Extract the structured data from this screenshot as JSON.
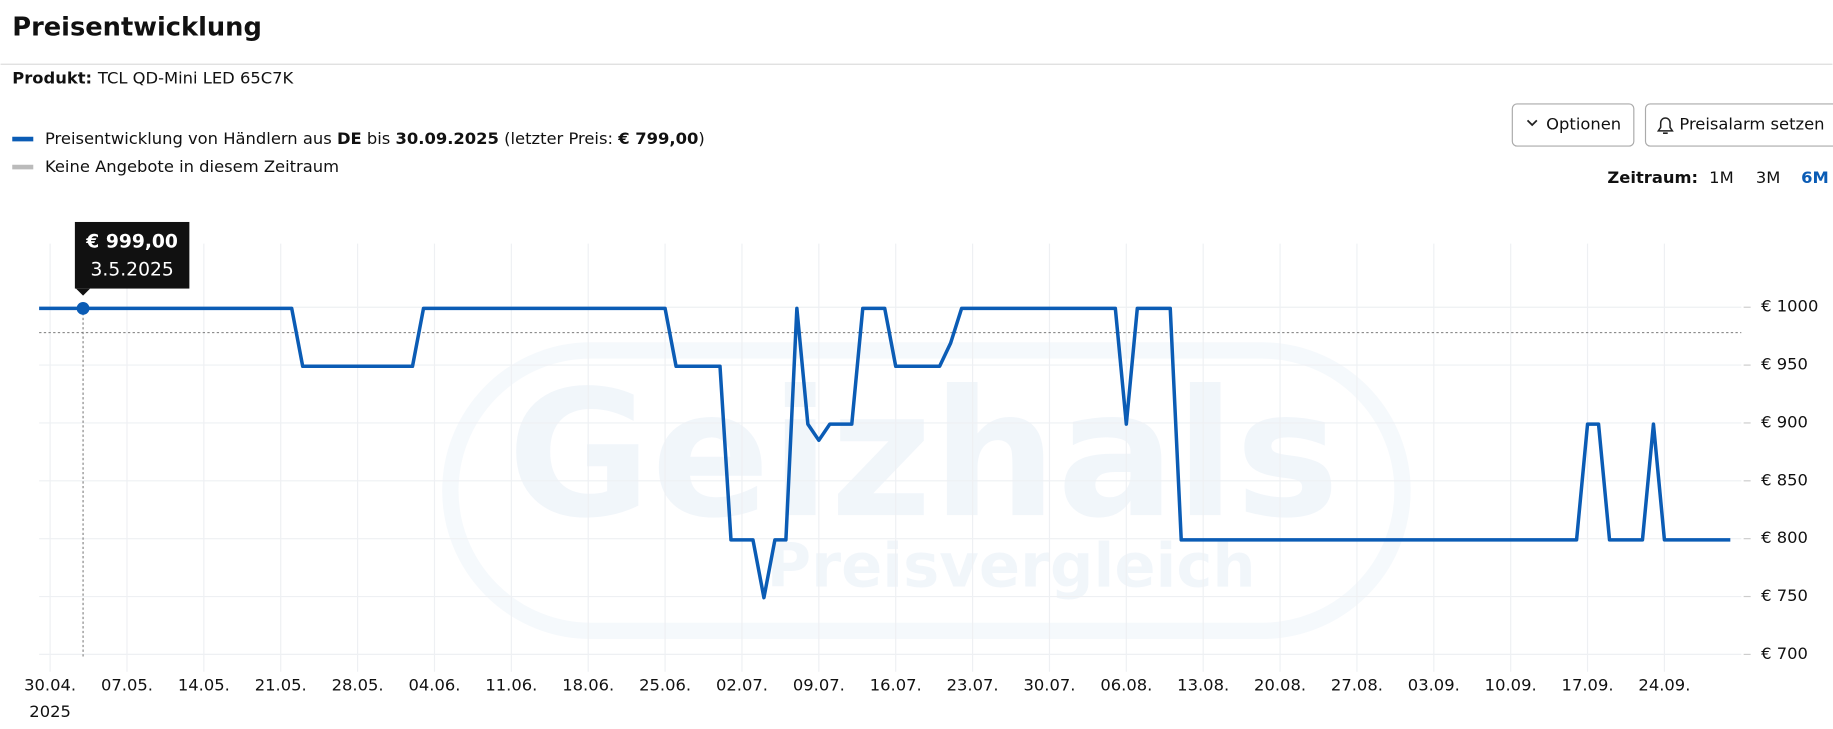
{
  "header": {
    "title": "Preisentwicklung",
    "product_label": "Produkt:",
    "product": "TCL QD-Mini LED 65C7K"
  },
  "controls": {
    "options": "Optionen",
    "alarm": "Preisalarm setzen",
    "range_label": "Zeitraum:",
    "ranges": [
      "1M",
      "3M",
      "6M"
    ],
    "active_range": "6M"
  },
  "legend": [
    {
      "parts": [
        "Preisentwicklung von Händlern aus ",
        "DE",
        " bis ",
        "30.09.2025",
        " (letzter Preis: ",
        "€ 799,00",
        ")"
      ],
      "bold": [
        false,
        true,
        false,
        true,
        false,
        true,
        false
      ],
      "color": "#0b5cb5"
    },
    {
      "parts": [
        "Keine Angebote in diesem Zeitraum"
      ],
      "bold": [
        false
      ],
      "color": "#bbbbbb"
    }
  ],
  "chart_data": {
    "type": "line",
    "x": [
      "2025-04-29",
      "2025-05-22",
      "2025-05-23",
      "2025-06-02",
      "2025-06-03",
      "2025-06-25",
      "2025-06-26",
      "2025-06-30",
      "2025-07-01",
      "2025-07-03",
      "2025-07-04",
      "2025-07-05",
      "2025-07-06",
      "2025-07-07",
      "2025-07-08",
      "2025-07-09",
      "2025-07-10",
      "2025-07-12",
      "2025-07-13",
      "2025-07-15",
      "2025-07-16",
      "2025-07-20",
      "2025-07-21",
      "2025-07-22",
      "2025-08-05",
      "2025-08-06",
      "2025-08-07",
      "2025-08-10",
      "2025-08-11",
      "2025-09-16",
      "2025-09-17",
      "2025-09-18",
      "2025-09-19",
      "2025-09-22",
      "2025-09-23",
      "2025-09-24",
      "2025-09-30"
    ],
    "series": [
      {
        "color": "#0b5cb5",
        "values": [
          999,
          999,
          949,
          949,
          999,
          999,
          949,
          949,
          799,
          799,
          749,
          799,
          799,
          999,
          899,
          885,
          899,
          899,
          999,
          999,
          949,
          949,
          969,
          999,
          999,
          899,
          999,
          999,
          799,
          799,
          899,
          899,
          799,
          799,
          899,
          799,
          799
        ]
      }
    ],
    "ylim": [
      685,
      1055
    ],
    "yticks": [
      {
        "value": 700,
        "label": "€ 700"
      },
      {
        "value": 750,
        "label": "€ 750"
      },
      {
        "value": 800,
        "label": "€ 800"
      },
      {
        "value": 850,
        "label": "€ 850"
      },
      {
        "value": 900,
        "label": "€ 900"
      },
      {
        "value": 950,
        "label": "€ 950"
      },
      {
        "value": 1000,
        "label": "€ 1000"
      }
    ],
    "xlim": [
      "2025-04-29",
      "2025-10-01"
    ],
    "xticks": [
      {
        "value": "2025-04-30",
        "label": "30.04."
      },
      {
        "value": "2025-05-07",
        "label": "07.05."
      },
      {
        "value": "2025-05-14",
        "label": "14.05."
      },
      {
        "value": "2025-05-21",
        "label": "21.05."
      },
      {
        "value": "2025-05-28",
        "label": "28.05."
      },
      {
        "value": "2025-06-04",
        "label": "04.06."
      },
      {
        "value": "2025-06-11",
        "label": "11.06."
      },
      {
        "value": "2025-06-18",
        "label": "18.06."
      },
      {
        "value": "2025-06-25",
        "label": "25.06."
      },
      {
        "value": "2025-07-02",
        "label": "02.07."
      },
      {
        "value": "2025-07-09",
        "label": "09.07."
      },
      {
        "value": "2025-07-16",
        "label": "16.07."
      },
      {
        "value": "2025-07-23",
        "label": "23.07."
      },
      {
        "value": "2025-07-30",
        "label": "30.07."
      },
      {
        "value": "2025-08-06",
        "label": "06.08."
      },
      {
        "value": "2025-08-13",
        "label": "13.08."
      },
      {
        "value": "2025-08-20",
        "label": "20.08."
      },
      {
        "value": "2025-08-27",
        "label": "27.08."
      },
      {
        "value": "2025-09-03",
        "label": "03.09."
      },
      {
        "value": "2025-09-10",
        "label": "10.09."
      },
      {
        "value": "2025-09-17",
        "label": "17.09."
      },
      {
        "value": "2025-09-24",
        "label": "24.09."
      }
    ],
    "xtick_year": "2025",
    "grid": true,
    "reference_line": 978,
    "tooltip": {
      "x": "2025-05-03",
      "value": 999,
      "value_label": "€ 999,00",
      "date_label": "3.5.2025"
    },
    "watermark": [
      "Geizhals",
      "Preisvergleich"
    ]
  }
}
